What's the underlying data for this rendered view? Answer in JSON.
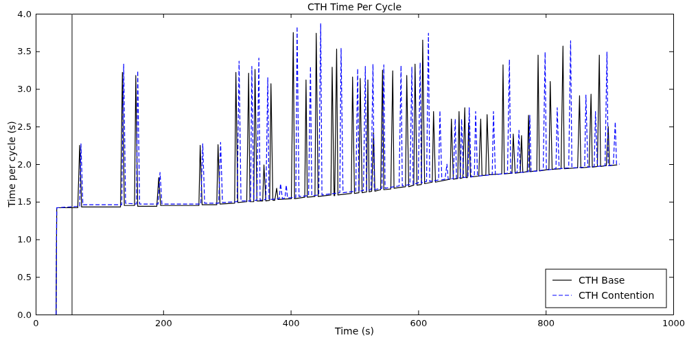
{
  "chart_data": {
    "type": "line",
    "title": "CTH Time Per Cycle",
    "xlabel": "Time (s)",
    "ylabel": "Time per cycle (s)",
    "xlim": [
      0,
      1000
    ],
    "xticks": [
      0,
      200,
      400,
      600,
      800,
      1000
    ],
    "ylim": [
      0,
      4
    ],
    "yticks": [
      {
        "value": 0,
        "label": "0.0"
      },
      {
        "value": 0.5,
        "label": "0.5"
      },
      {
        "value": 1,
        "label": "1.0"
      },
      {
        "value": 1.5,
        "label": "1.5"
      },
      {
        "value": 2,
        "label": "2.0"
      },
      {
        "value": 2.5,
        "label": "2.5"
      },
      {
        "value": 3,
        "label": "3.0"
      },
      {
        "value": 3.5,
        "label": "3.5"
      },
      {
        "value": 4,
        "label": "4.0"
      }
    ],
    "grid": false,
    "legend": "bottom right",
    "marker": "none",
    "ref_lines": [
      {
        "axis": "x",
        "value": 57,
        "color": "#555555"
      }
    ],
    "series": [
      {
        "name": "CTH Base",
        "color": "#000000",
        "line_style": "solid",
        "x": [
          32,
          33,
          66,
          69,
          72,
          133,
          136,
          139,
          155,
          157,
          160,
          190,
          193,
          196,
          256,
          258,
          261,
          284,
          286,
          289,
          312,
          314,
          317,
          331,
          334,
          336,
          342,
          344,
          347,
          356,
          358,
          361,
          367,
          369,
          372,
          375,
          378,
          380,
          401,
          404,
          406,
          422,
          424,
          426,
          438,
          440,
          443,
          463,
          465,
          468,
          469,
          472,
          474,
          495,
          497,
          500,
          507,
          509,
          512,
          519,
          521,
          523,
          527,
          530,
          532,
          541,
          544,
          546,
          557,
          560,
          562,
          580,
          582,
          585,
          593,
          595,
          598,
          605,
          607,
          610,
          622,
          624,
          627,
          650,
          652,
          655,
          662,
          664,
          666,
          670,
          673,
          675,
          677,
          679,
          682,
          695,
          698,
          700,
          706,
          708,
          711,
          731,
          733,
          735,
          747,
          749,
          752,
          760,
          762,
          764,
          771,
          773,
          775,
          786,
          788,
          790,
          805,
          807,
          810,
          824,
          827,
          829,
          850,
          853,
          855,
          868,
          871,
          873,
          881,
          884,
          886,
          895,
          898,
          900,
          912
        ],
        "values": [
          0,
          1.42,
          1.42,
          2.25,
          1.43,
          1.43,
          3.22,
          1.45,
          1.45,
          3.18,
          1.44,
          1.44,
          1.82,
          1.45,
          1.45,
          2.25,
          1.46,
          1.46,
          2.26,
          1.47,
          1.48,
          3.22,
          1.49,
          1.5,
          3.21,
          1.5,
          1.5,
          3.26,
          1.51,
          1.51,
          1.99,
          1.51,
          1.52,
          3.07,
          1.52,
          1.52,
          1.68,
          1.53,
          1.54,
          3.75,
          1.54,
          1.56,
          3.12,
          1.56,
          1.57,
          3.74,
          1.57,
          1.59,
          3.29,
          1.58,
          1.58,
          3.53,
          1.59,
          1.61,
          3.16,
          1.61,
          1.62,
          3.14,
          1.62,
          1.63,
          3.12,
          1.63,
          1.64,
          2.42,
          1.64,
          1.66,
          3.25,
          1.66,
          1.67,
          3.24,
          1.68,
          1.7,
          3.18,
          1.7,
          1.72,
          3.33,
          1.72,
          1.73,
          3.65,
          1.74,
          1.76,
          2.7,
          1.76,
          1.8,
          2.6,
          1.8,
          1.81,
          2.7,
          1.81,
          1.82,
          2.75,
          1.82,
          1.82,
          2.55,
          1.83,
          1.84,
          2.6,
          1.85,
          1.85,
          2.66,
          1.86,
          1.87,
          3.32,
          1.87,
          1.88,
          2.4,
          1.88,
          1.89,
          2.38,
          1.89,
          1.9,
          2.65,
          1.9,
          1.91,
          3.45,
          1.91,
          1.93,
          3.1,
          1.93,
          1.94,
          3.57,
          1.94,
          1.95,
          2.91,
          1.95,
          1.96,
          2.93,
          1.96,
          1.97,
          3.45,
          1.97,
          1.98,
          2.5,
          1.98,
          1.99
        ]
      },
      {
        "name": "CTH Contention",
        "color": "#0000ff",
        "line_style": "dashed",
        "x": [
          32,
          33,
          69,
          71,
          74,
          135,
          138,
          141,
          158,
          160,
          163,
          192,
          195,
          198,
          259,
          262,
          265,
          287,
          290,
          293,
          316,
          319,
          322,
          337,
          339,
          342,
          347,
          350,
          352,
          361,
          364,
          366,
          382,
          384,
          387,
          391,
          393,
          395,
          408,
          410,
          413,
          428,
          431,
          433,
          444,
          447,
          449,
          477,
          479,
          482,
          502,
          505,
          507,
          514,
          517,
          519,
          526,
          529,
          531,
          543,
          546,
          548,
          570,
          573,
          575,
          587,
          590,
          592,
          600,
          603,
          605,
          613,
          616,
          618,
          632,
          634,
          637,
          642,
          645,
          647,
          655,
          658,
          660,
          666,
          668,
          671,
          678,
          680,
          683,
          688,
          690,
          693,
          716,
          718,
          721,
          740,
          743,
          745,
          755,
          758,
          760,
          773,
          775,
          777,
          796,
          799,
          801,
          816,
          818,
          821,
          836,
          839,
          841,
          861,
          863,
          866,
          876,
          878,
          881,
          893,
          896,
          898,
          906,
          909,
          911,
          916
        ],
        "values": [
          0,
          1.42,
          1.44,
          2.27,
          1.46,
          1.46,
          3.33,
          1.48,
          1.47,
          3.24,
          1.47,
          1.47,
          1.89,
          1.47,
          1.47,
          2.27,
          1.48,
          1.48,
          2.29,
          1.49,
          1.5,
          3.37,
          1.51,
          1.51,
          3.3,
          1.52,
          1.52,
          3.41,
          1.52,
          1.53,
          3.15,
          1.53,
          1.54,
          1.74,
          1.54,
          1.55,
          1.72,
          1.55,
          1.56,
          3.83,
          1.57,
          1.58,
          3.3,
          1.58,
          1.59,
          3.87,
          1.59,
          1.62,
          3.54,
          1.62,
          1.64,
          3.27,
          1.64,
          1.65,
          3.3,
          1.65,
          1.66,
          3.33,
          1.66,
          1.68,
          3.32,
          1.68,
          1.71,
          3.31,
          1.71,
          1.73,
          3.29,
          1.73,
          1.75,
          3.35,
          1.75,
          1.77,
          3.74,
          1.77,
          1.79,
          2.71,
          1.79,
          1.8,
          2.0,
          1.8,
          1.81,
          2.6,
          1.81,
          1.82,
          2.6,
          1.82,
          1.83,
          2.75,
          1.83,
          1.84,
          2.7,
          1.84,
          1.86,
          2.7,
          1.86,
          1.88,
          3.39,
          1.88,
          1.89,
          2.45,
          1.89,
          1.9,
          2.65,
          1.9,
          1.92,
          3.49,
          1.92,
          1.94,
          2.75,
          1.94,
          1.95,
          3.64,
          1.95,
          1.96,
          2.92,
          1.96,
          1.97,
          2.7,
          1.97,
          1.98,
          3.49,
          1.98,
          1.99,
          2.56,
          2.0,
          2.0
        ]
      }
    ]
  }
}
